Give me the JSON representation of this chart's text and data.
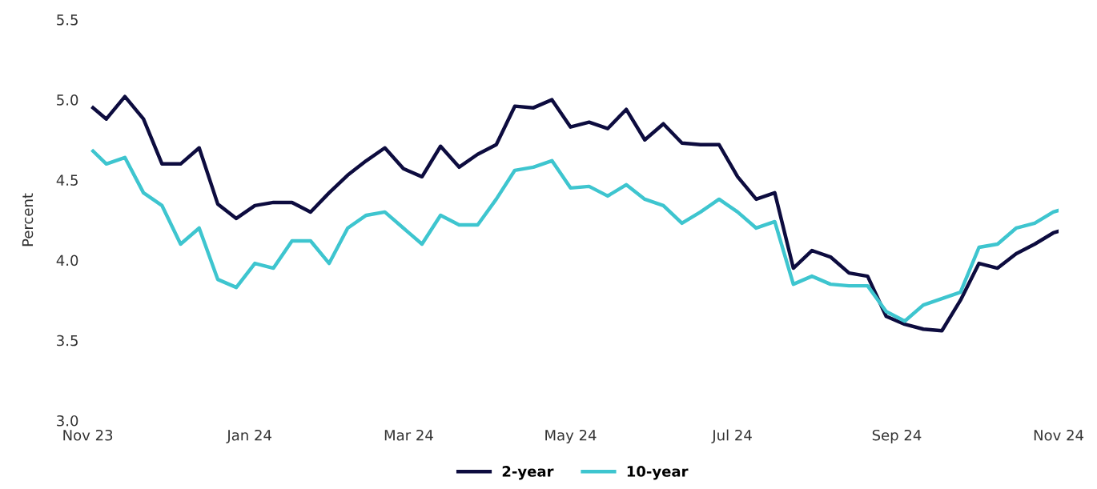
{
  "chart_data": {
    "type": "line",
    "ylabel": "Percent",
    "x": [
      "2023-11-03",
      "2023-11-08",
      "2023-11-15",
      "2023-11-22",
      "2023-11-29",
      "2023-12-06",
      "2023-12-13",
      "2023-12-20",
      "2023-12-27",
      "2024-01-03",
      "2024-01-10",
      "2024-01-17",
      "2024-01-24",
      "2024-01-31",
      "2024-02-07",
      "2024-02-14",
      "2024-02-21",
      "2024-02-28",
      "2024-03-06",
      "2024-03-13",
      "2024-03-20",
      "2024-03-27",
      "2024-04-03",
      "2024-04-10",
      "2024-04-17",
      "2024-04-24",
      "2024-05-01",
      "2024-05-08",
      "2024-05-15",
      "2024-05-22",
      "2024-05-29",
      "2024-06-05",
      "2024-06-12",
      "2024-06-19",
      "2024-06-26",
      "2024-07-03",
      "2024-07-10",
      "2024-07-17",
      "2024-07-24",
      "2024-07-31",
      "2024-08-07",
      "2024-08-14",
      "2024-08-21",
      "2024-08-28",
      "2024-09-04",
      "2024-09-11",
      "2024-09-18",
      "2024-09-25",
      "2024-10-02",
      "2024-10-09",
      "2024-10-16",
      "2024-10-23",
      "2024-10-30",
      "2024-11-01"
    ],
    "xlim": [
      "2023-11-01",
      "2024-11-01"
    ],
    "series": [
      {
        "name": "2-year",
        "color": "#0d0c3f",
        "values": [
          4.95,
          4.88,
          5.02,
          4.88,
          4.6,
          4.6,
          4.7,
          4.35,
          4.26,
          4.34,
          4.36,
          4.36,
          4.3,
          4.42,
          4.53,
          4.62,
          4.7,
          4.57,
          4.52,
          4.71,
          4.58,
          4.66,
          4.72,
          4.96,
          4.95,
          5.0,
          4.83,
          4.86,
          4.82,
          4.94,
          4.75,
          4.85,
          4.73,
          4.72,
          4.72,
          4.52,
          4.38,
          4.42,
          3.95,
          4.06,
          4.02,
          3.92,
          3.9,
          3.65,
          3.6,
          3.57,
          3.56,
          3.75,
          3.98,
          3.95,
          4.04,
          4.1,
          4.17,
          4.18
        ]
      },
      {
        "name": "10-year",
        "color": "#3ec5cf",
        "values": [
          4.68,
          4.6,
          4.64,
          4.42,
          4.34,
          4.1,
          4.2,
          3.88,
          3.83,
          3.98,
          3.95,
          4.12,
          4.12,
          3.98,
          4.2,
          4.28,
          4.3,
          4.2,
          4.1,
          4.28,
          4.22,
          4.22,
          4.38,
          4.56,
          4.58,
          4.62,
          4.45,
          4.46,
          4.4,
          4.47,
          4.38,
          4.34,
          4.23,
          4.3,
          4.38,
          4.3,
          4.2,
          4.24,
          3.85,
          3.9,
          3.85,
          3.84,
          3.84,
          3.68,
          3.62,
          3.72,
          3.76,
          3.8,
          4.08,
          4.1,
          4.2,
          4.23,
          4.3,
          4.31
        ]
      }
    ],
    "xticks": [
      {
        "value": "2023-11-01",
        "label": "Nov 23"
      },
      {
        "value": "2024-01-01",
        "label": "Jan 24"
      },
      {
        "value": "2024-03-01",
        "label": "Mar 24"
      },
      {
        "value": "2024-05-01",
        "label": "May 24"
      },
      {
        "value": "2024-07-01",
        "label": "Jul 24"
      },
      {
        "value": "2024-09-01",
        "label": "Sep 24"
      },
      {
        "value": "2024-11-01",
        "label": "Nov 24"
      }
    ],
    "ylim": [
      3.0,
      5.5
    ],
    "yticks": [
      {
        "value": 3.0,
        "label": "3.0"
      },
      {
        "value": 3.5,
        "label": "3.5"
      },
      {
        "value": 4.0,
        "label": "4.0"
      },
      {
        "value": 4.5,
        "label": "4.5"
      },
      {
        "value": 5.0,
        "label": "5.0"
      },
      {
        "value": 5.5,
        "label": "5.5"
      }
    ],
    "grid": false,
    "legend": "bottom",
    "marker": "none",
    "line_style": "solid"
  }
}
